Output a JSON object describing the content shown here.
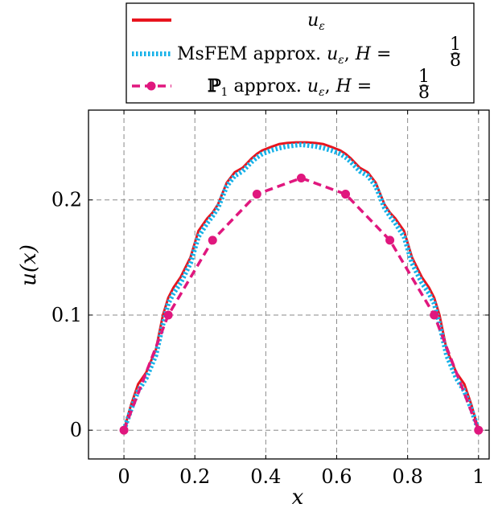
{
  "chart_data": {
    "type": "line",
    "xlabel": "x",
    "ylabel": "u(x)",
    "xlim": [
      -0.1,
      1.03
    ],
    "ylim": [
      -0.025,
      0.278
    ],
    "grid": true,
    "grid_style": "dashed",
    "legend_position": "top",
    "x_ticks": [
      {
        "value": 0,
        "label": "0"
      },
      {
        "value": 0.2,
        "label": "0.2"
      },
      {
        "value": 0.4,
        "label": "0.4"
      },
      {
        "value": 0.6,
        "label": "0.6"
      },
      {
        "value": 0.8,
        "label": "0.8"
      },
      {
        "value": 1,
        "label": "1"
      }
    ],
    "y_ticks": [
      {
        "value": 0,
        "label": "0"
      },
      {
        "value": 0.1,
        "label": "0.1"
      },
      {
        "value": 0.2,
        "label": "0.2"
      }
    ],
    "series": [
      {
        "name": "u_ε",
        "color": "#e8141e",
        "style": "solid",
        "x": [
          0,
          0.02,
          0.04,
          0.0625,
          0.09,
          0.11,
          0.125,
          0.14,
          0.16,
          0.1875,
          0.21,
          0.235,
          0.25,
          0.265,
          0.29,
          0.3125,
          0.335,
          0.36,
          0.375,
          0.39,
          0.415,
          0.4375,
          0.46,
          0.485,
          0.5,
          0.515,
          0.54,
          0.5625,
          0.585,
          0.61,
          0.625,
          0.64,
          0.665,
          0.6875,
          0.71,
          0.735,
          0.75,
          0.765,
          0.79,
          0.8125,
          0.84,
          0.86,
          0.875,
          0.89,
          0.91,
          0.9375,
          0.96,
          0.98,
          1
        ],
        "y": [
          0,
          0.022,
          0.04,
          0.05,
          0.07,
          0.1,
          0.115,
          0.124,
          0.133,
          0.15,
          0.173,
          0.184,
          0.189,
          0.196,
          0.215,
          0.224,
          0.228,
          0.236,
          0.24,
          0.243,
          0.246,
          0.2485,
          0.2495,
          0.25,
          0.25,
          0.25,
          0.2495,
          0.2485,
          0.246,
          0.243,
          0.24,
          0.236,
          0.228,
          0.224,
          0.215,
          0.196,
          0.189,
          0.184,
          0.173,
          0.15,
          0.133,
          0.124,
          0.115,
          0.1,
          0.07,
          0.05,
          0.04,
          0.022,
          0
        ]
      },
      {
        "name": "MsFEM approx. u_ε, H = 1/8",
        "color": "#16b1e8",
        "style": "dotted",
        "x": [
          0,
          0.02,
          0.04,
          0.0625,
          0.09,
          0.11,
          0.125,
          0.14,
          0.16,
          0.1875,
          0.21,
          0.235,
          0.25,
          0.265,
          0.29,
          0.3125,
          0.335,
          0.36,
          0.375,
          0.39,
          0.415,
          0.4375,
          0.46,
          0.485,
          0.5,
          0.515,
          0.54,
          0.5625,
          0.585,
          0.61,
          0.625,
          0.64,
          0.665,
          0.6875,
          0.71,
          0.735,
          0.75,
          0.765,
          0.79,
          0.8125,
          0.84,
          0.86,
          0.875,
          0.89,
          0.91,
          0.9375,
          0.96,
          0.98,
          1
        ],
        "y": [
          0,
          0.018,
          0.034,
          0.045,
          0.065,
          0.092,
          0.11,
          0.119,
          0.128,
          0.145,
          0.168,
          0.18,
          0.186,
          0.193,
          0.212,
          0.221,
          0.225,
          0.233,
          0.237,
          0.24,
          0.243,
          0.245,
          0.2465,
          0.2475,
          0.248,
          0.2475,
          0.2465,
          0.245,
          0.243,
          0.24,
          0.237,
          0.233,
          0.225,
          0.221,
          0.212,
          0.193,
          0.186,
          0.18,
          0.168,
          0.145,
          0.128,
          0.119,
          0.11,
          0.092,
          0.065,
          0.045,
          0.034,
          0.018,
          0
        ]
      },
      {
        "name": "ℙ1 approx. u_ε, H = 1/8",
        "color": "#e0177e",
        "style": "dashed",
        "marker": "circle",
        "x": [
          0,
          0.125,
          0.25,
          0.375,
          0.5,
          0.625,
          0.75,
          0.875,
          1
        ],
        "y": [
          0,
          0.1,
          0.165,
          0.205,
          0.219,
          0.205,
          0.165,
          0.1,
          0
        ]
      }
    ]
  }
}
